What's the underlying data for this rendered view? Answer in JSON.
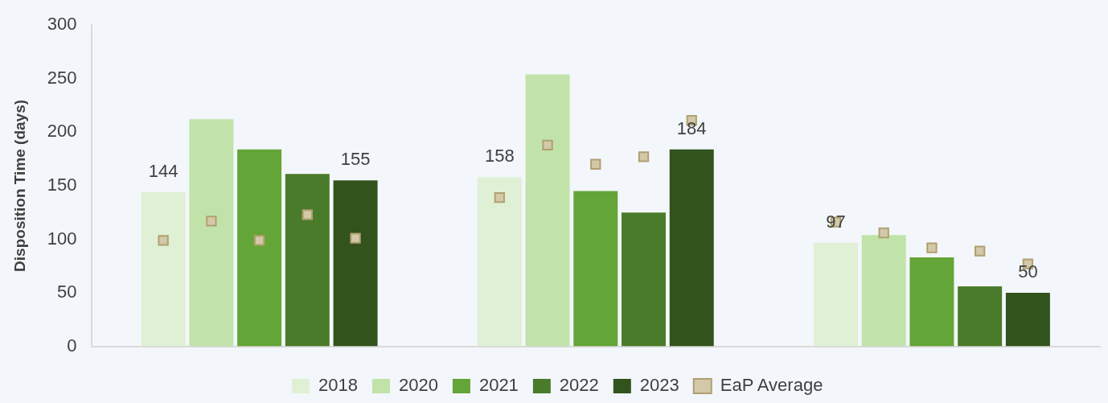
{
  "chart_data": {
    "type": "bar",
    "ylabel": "Disposition Time (days)",
    "categories": [
      null,
      null,
      null,
      null,
      null,
      null,
      null,
      null,
      null,
      null,
      null,
      null,
      null,
      null,
      null,
      null,
      null,
      null,
      null,
      null,
      null
    ],
    "series": [
      {
        "name": "2018",
        "color": "#dff0d4",
        "values": [
          null,
          144,
          null,
          null,
          null,
          null,
          null,
          null,
          158,
          null,
          null,
          null,
          null,
          null,
          null,
          97,
          null,
          null,
          null,
          null,
          null
        ],
        "value_labels": [
          null,
          "144",
          null,
          null,
          null,
          null,
          null,
          null,
          "158",
          null,
          null,
          null,
          null,
          null,
          null,
          "97",
          null,
          null,
          null,
          null,
          null
        ]
      },
      {
        "name": "2020",
        "color": "#c1e3a9",
        "values": [
          null,
          null,
          212,
          null,
          null,
          null,
          null,
          null,
          null,
          254,
          null,
          null,
          null,
          null,
          null,
          null,
          104,
          null,
          null,
          null,
          null
        ]
      },
      {
        "name": "2021",
        "color": "#64a537",
        "values": [
          null,
          null,
          null,
          184,
          null,
          null,
          null,
          null,
          null,
          null,
          145,
          null,
          null,
          null,
          null,
          null,
          null,
          83,
          null,
          null,
          null
        ]
      },
      {
        "name": "2022",
        "color": "#4a7b2a",
        "values": [
          null,
          null,
          null,
          null,
          161,
          null,
          null,
          null,
          null,
          null,
          null,
          125,
          null,
          null,
          null,
          null,
          null,
          null,
          56,
          null,
          null
        ]
      },
      {
        "name": "2023",
        "color": "#32531c",
        "values": [
          null,
          null,
          null,
          null,
          null,
          155,
          null,
          null,
          null,
          null,
          null,
          null,
          184,
          null,
          null,
          null,
          null,
          null,
          null,
          50,
          null
        ],
        "value_labels": [
          null,
          null,
          null,
          null,
          null,
          "155",
          null,
          null,
          null,
          null,
          null,
          null,
          "184",
          null,
          null,
          null,
          null,
          null,
          null,
          "50",
          null
        ]
      },
      {
        "name": "EaP Average",
        "type": "scatter",
        "marker": "square",
        "color": "#d3c9a8",
        "values": [
          null,
          99,
          117,
          99,
          123,
          101,
          null,
          null,
          139,
          188,
          170,
          177,
          211,
          null,
          null,
          116,
          106,
          92,
          89,
          77,
          null
        ]
      }
    ],
    "ylim": [
      0,
      300
    ],
    "yticks": [
      0,
      50,
      100,
      150,
      200,
      250,
      300
    ],
    "grid": false,
    "legend": "bottom"
  }
}
